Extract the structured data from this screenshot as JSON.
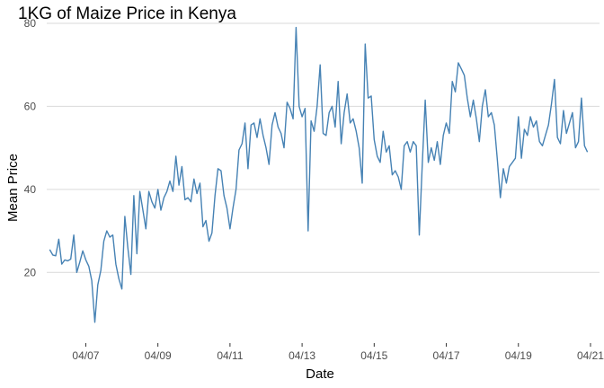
{
  "chart_data": {
    "type": "line",
    "title": "1KG of Maize Price in Kenya",
    "xlabel": "Date",
    "ylabel": "Mean Price",
    "line_color": "#4682b4",
    "grid": "horizontal major gridlines",
    "legend": "none",
    "x_ticks": [
      "04/07",
      "04/09",
      "04/11",
      "04/13",
      "04/15",
      "04/17",
      "04/19",
      "04/21"
    ],
    "y_ticks": [
      20,
      40,
      60,
      80
    ],
    "xlim": [
      "2005-12",
      "2021-04"
    ],
    "ylim": [
      6,
      80
    ],
    "series": [
      {
        "x": [
          "2006-01",
          "2006-02",
          "2006-03",
          "2006-04",
          "2006-05",
          "2006-06",
          "2006-07",
          "2006-08",
          "2006-09",
          "2006-10",
          "2006-11",
          "2006-12",
          "2007-01",
          "2007-02",
          "2007-03",
          "2007-04",
          "2007-05",
          "2007-06",
          "2007-07",
          "2007-08",
          "2007-09",
          "2007-10",
          "2007-11",
          "2007-12",
          "2008-01",
          "2008-02",
          "2008-03",
          "2008-04",
          "2008-05",
          "2008-06",
          "2008-07",
          "2008-08",
          "2008-09",
          "2008-10",
          "2008-11",
          "2008-12",
          "2009-01",
          "2009-02",
          "2009-03",
          "2009-04",
          "2009-05",
          "2009-06",
          "2009-07",
          "2009-08",
          "2009-09",
          "2009-10",
          "2009-11",
          "2009-12",
          "2010-01",
          "2010-02",
          "2010-03",
          "2010-04",
          "2010-05",
          "2010-06",
          "2010-07",
          "2010-08",
          "2010-09",
          "2010-10",
          "2010-11",
          "2010-12",
          "2011-01",
          "2011-02",
          "2011-03",
          "2011-04",
          "2011-05",
          "2011-06",
          "2011-07",
          "2011-08",
          "2011-09",
          "2011-10",
          "2011-11",
          "2011-12",
          "2012-01",
          "2012-02",
          "2012-03",
          "2012-04",
          "2012-05",
          "2012-06",
          "2012-07",
          "2012-08",
          "2012-09",
          "2012-10",
          "2012-11",
          "2012-12",
          "2013-01",
          "2013-02",
          "2013-03",
          "2013-04",
          "2013-05",
          "2013-06",
          "2013-07",
          "2013-08",
          "2013-09",
          "2013-10",
          "2013-11",
          "2013-12",
          "2014-01",
          "2014-02",
          "2014-03",
          "2014-04",
          "2014-05",
          "2014-06",
          "2014-07",
          "2014-08",
          "2014-09",
          "2014-10",
          "2014-11",
          "2014-12",
          "2015-01",
          "2015-02",
          "2015-03",
          "2015-04",
          "2015-05",
          "2015-06",
          "2015-07",
          "2015-08",
          "2015-09",
          "2015-10",
          "2015-11",
          "2015-12",
          "2016-01",
          "2016-02",
          "2016-03",
          "2016-04",
          "2016-05",
          "2016-06",
          "2016-07",
          "2016-08",
          "2016-09",
          "2016-10",
          "2016-11",
          "2016-12",
          "2017-01",
          "2017-02",
          "2017-03",
          "2017-04",
          "2017-05",
          "2017-06",
          "2017-07",
          "2017-08",
          "2017-09",
          "2017-10",
          "2017-11",
          "2017-12",
          "2018-01",
          "2018-02",
          "2018-03",
          "2018-04",
          "2018-05",
          "2018-06",
          "2018-07",
          "2018-08",
          "2018-09",
          "2018-10",
          "2018-11",
          "2018-12",
          "2019-01",
          "2019-02",
          "2019-03",
          "2019-04",
          "2019-05",
          "2019-06",
          "2019-07",
          "2019-08",
          "2019-09",
          "2019-10",
          "2019-11",
          "2019-12",
          "2020-01",
          "2020-02",
          "2020-03",
          "2020-04",
          "2020-05",
          "2020-06",
          "2020-07",
          "2020-08",
          "2020-09",
          "2020-10",
          "2020-11",
          "2020-12"
        ],
        "y": [
          25.5,
          24.2,
          24.0,
          28.0,
          22.0,
          23.0,
          22.8,
          23.2,
          29.0,
          20.0,
          22.5,
          25.2,
          23.0,
          21.5,
          18.0,
          8.0,
          17.0,
          20.5,
          27.5,
          30.0,
          28.5,
          29.0,
          22.0,
          18.5,
          16.0,
          33.5,
          26.0,
          19.5,
          38.5,
          24.5,
          39.5,
          35.0,
          30.5,
          39.5,
          37.0,
          35.5,
          40.0,
          35.0,
          38.0,
          39.5,
          42.0,
          39.5,
          48.0,
          41.0,
          45.5,
          37.5,
          38.0,
          37.0,
          42.5,
          39.0,
          41.5,
          31.0,
          32.5,
          27.5,
          29.5,
          38.5,
          45.0,
          44.5,
          38.5,
          35.5,
          30.5,
          35.5,
          40.0,
          49.5,
          51.0,
          56.0,
          45.0,
          55.5,
          56.0,
          52.5,
          57.0,
          53.0,
          50.0,
          46.0,
          55.5,
          58.5,
          55.0,
          53.5,
          50.0,
          61.0,
          59.5,
          57.0,
          79.0,
          60.0,
          57.5,
          59.5,
          30.0,
          56.5,
          54.0,
          60.0,
          70.0,
          53.5,
          53.0,
          58.5,
          60.0,
          55.0,
          66.0,
          51.0,
          58.5,
          63.0,
          56.0,
          57.0,
          54.0,
          50.0,
          41.5,
          75.0,
          62.0,
          62.5,
          52.0,
          48.0,
          46.5,
          54.0,
          49.0,
          50.5,
          43.5,
          44.5,
          43.0,
          40.0,
          50.5,
          51.5,
          49.0,
          51.5,
          50.5,
          29.0,
          46.0,
          61.5,
          46.5,
          50.0,
          47.0,
          51.5,
          46.0,
          53.0,
          56.0,
          53.5,
          66.0,
          63.5,
          70.5,
          69.0,
          67.5,
          62.0,
          57.5,
          61.5,
          57.0,
          51.5,
          60.0,
          64.0,
          57.5,
          58.5,
          55.5,
          47.0,
          38.0,
          45.0,
          41.5,
          45.5,
          46.5,
          47.5,
          57.5,
          47.5,
          54.5,
          53.0,
          57.5,
          55.0,
          56.5,
          51.5,
          50.5,
          53.0,
          55.5,
          60.5,
          66.5,
          52.5,
          51.0,
          59.0,
          53.5,
          56.0,
          58.5,
          50.0,
          51.5,
          62.0,
          50.5,
          49.0
        ]
      }
    ]
  }
}
